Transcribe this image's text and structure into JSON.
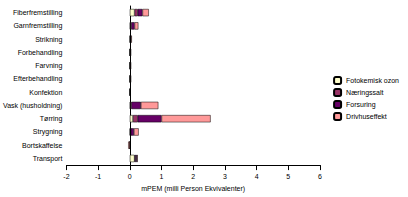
{
  "chart_data": {
    "type": "bar",
    "orientation": "horizontal",
    "stacked": true,
    "x_label": "mPEM (milli Person Ekvivalenter)",
    "categories": [
      "Fiberfremstilling",
      "Garnfremstilling",
      "Strikning",
      "Forbehandling",
      "Farvning",
      "Efterbehandling",
      "Konfektion",
      "Vask (husholdning)",
      "Tørring",
      "Strygning",
      "Bortskaffelse",
      "Transport"
    ],
    "series": [
      {
        "name": "Fotokemisk ozon",
        "color": "#ffffcc",
        "values": [
          0.15,
          0.02,
          0.01,
          0.005,
          0.005,
          0.005,
          0.005,
          0.02,
          0.1,
          0.01,
          0,
          0.15
        ]
      },
      {
        "name": "Næringssalt",
        "color": "#993366",
        "values": [
          0.1,
          0.03,
          0.005,
          0.005,
          0.005,
          0.005,
          0.005,
          0.03,
          0.15,
          0.02,
          0,
          0.02
        ]
      },
      {
        "name": "Forsuring",
        "color": "#660066",
        "values": [
          0.15,
          0.1,
          0.02,
          0.01,
          0.01,
          0.01,
          0.005,
          0.3,
          0.75,
          0.1,
          0,
          0.05
        ]
      },
      {
        "name": "Drivhuseffekt",
        "color": "#ff9999",
        "values": [
          0.2,
          0.12,
          0.03,
          0.02,
          0.02,
          0.02,
          0.01,
          0.55,
          1.55,
          0.15,
          -0.05,
          0.03
        ]
      }
    ],
    "xlim": [
      -2,
      6
    ],
    "xticks": [
      -2,
      -1,
      0,
      1,
      2,
      3,
      4,
      5,
      6
    ],
    "legend": "right",
    "grid": false
  }
}
